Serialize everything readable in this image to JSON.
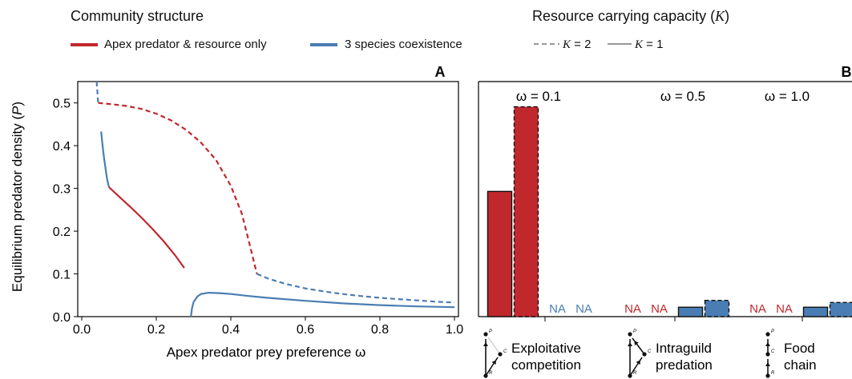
{
  "legend": {
    "community_title": "Community structure",
    "community_items": [
      {
        "label": "Apex predator & resource only",
        "color": "#c0282d"
      },
      {
        "label": "3 species coexistence",
        "color": "#4a7db3"
      }
    ],
    "capacity_title_prefix": "Resource carrying capacity (",
    "capacity_title_symbol": "K",
    "capacity_title_suffix": ")",
    "capacity_items": [
      {
        "symbol": "K",
        "value": " = 2",
        "style": "dashed"
      },
      {
        "symbol": "K",
        "value": " = 1",
        "style": "solid"
      }
    ]
  },
  "chart_data": [
    {
      "type": "line",
      "panel_label": "A",
      "xlabel": "Apex predator prey preference ω",
      "ylabel_prefix": "Equilibrium predator density (",
      "ylabel_symbol": "P",
      "ylabel_suffix": ")",
      "xlim": [
        0.0,
        1.0
      ],
      "ylim": [
        0.0,
        0.55
      ],
      "xticks": [
        "0.0",
        "0.2",
        "0.4",
        "0.6",
        "0.8",
        "1.0"
      ],
      "yticks": [
        "0.0",
        "0.1",
        "0.2",
        "0.3",
        "0.4",
        "0.5"
      ],
      "grid": false,
      "series": [
        {
          "community": "3 species coexistence",
          "K": 2,
          "style": "dashed",
          "color": "#4a7db3",
          "x": [
            0.04,
            0.044
          ],
          "y": [
            0.55,
            0.5
          ]
        },
        {
          "community": "Apex predator & resource only",
          "K": 2,
          "style": "dashed",
          "color": "#c0282d",
          "x": [
            0.044,
            0.08,
            0.12,
            0.16,
            0.2,
            0.24,
            0.28,
            0.32,
            0.36,
            0.4,
            0.43,
            0.45,
            0.47
          ],
          "y": [
            0.5,
            0.497,
            0.493,
            0.486,
            0.475,
            0.459,
            0.437,
            0.407,
            0.367,
            0.306,
            0.24,
            0.17,
            0.1
          ]
        },
        {
          "community": "3 species coexistence",
          "K": 2,
          "style": "dashed",
          "color": "#4a7db3",
          "x": [
            0.47,
            0.5,
            0.55,
            0.6,
            0.65,
            0.7,
            0.75,
            0.8,
            0.85,
            0.9,
            0.95,
            1.0
          ],
          "y": [
            0.1,
            0.089,
            0.076,
            0.066,
            0.059,
            0.053,
            0.048,
            0.044,
            0.041,
            0.038,
            0.035,
            0.033
          ]
        },
        {
          "community": "3 species coexistence",
          "K": 1,
          "style": "solid",
          "color": "#4a7db3",
          "x": [
            0.052,
            0.056,
            0.06,
            0.064,
            0.068,
            0.073
          ],
          "y": [
            0.433,
            0.4,
            0.37,
            0.345,
            0.322,
            0.303
          ]
        },
        {
          "community": "Apex predator & resource only",
          "K": 1,
          "style": "solid",
          "color": "#c0282d",
          "x": [
            0.073,
            0.1,
            0.13,
            0.16,
            0.19,
            0.22,
            0.25,
            0.275
          ],
          "y": [
            0.303,
            0.281,
            0.257,
            0.232,
            0.205,
            0.176,
            0.144,
            0.114
          ]
        },
        {
          "community": "3 species coexistence",
          "K": 1,
          "style": "solid",
          "color": "#4a7db3",
          "x": [
            0.293,
            0.296,
            0.3,
            0.31,
            0.32,
            0.34,
            0.37,
            0.4,
            0.45,
            0.5,
            0.6,
            0.7,
            0.8,
            0.9,
            1.0
          ],
          "y": [
            0.0,
            0.02,
            0.034,
            0.047,
            0.053,
            0.056,
            0.055,
            0.053,
            0.048,
            0.044,
            0.037,
            0.031,
            0.027,
            0.024,
            0.022
          ]
        }
      ]
    },
    {
      "type": "bar",
      "panel_label": "B",
      "ylim": [
        0.0,
        0.55
      ],
      "omega_labels": [
        "ω = 0.1",
        "ω = 0.5",
        "ω = 1.0"
      ],
      "categories": [
        {
          "title_lines": [
            "Exploitative",
            "competition"
          ]
        },
        {
          "title_lines": [
            "Intraguild",
            "predation"
          ]
        },
        {
          "title_lines": [
            "Food",
            "chain"
          ]
        }
      ],
      "bars": [
        {
          "group": 0,
          "omega": 0.1,
          "K": 1,
          "style": "solid",
          "value": 0.293,
          "color": "#c0282d"
        },
        {
          "group": 0,
          "omega": 0.1,
          "K": 2,
          "style": "dashed",
          "value": 0.491,
          "color": "#c0282d"
        },
        {
          "group": 1,
          "omega": 0.1,
          "K": 1,
          "na": true,
          "label": "NA",
          "color": "#4a7db3"
        },
        {
          "group": 1,
          "omega": 0.1,
          "K": 2,
          "na": true,
          "label": "NA",
          "color": "#4a7db3"
        },
        {
          "group": 1,
          "omega": 0.5,
          "K": 1,
          "na": true,
          "label": "NA",
          "color": "#c0282d"
        },
        {
          "group": 1,
          "omega": 0.5,
          "K": 2,
          "na": true,
          "label": "NA",
          "color": "#c0282d"
        },
        {
          "group": 2,
          "omega": 0.5,
          "K": 1,
          "style": "solid",
          "value": 0.022,
          "color": "#4a7db3"
        },
        {
          "group": 2,
          "omega": 0.5,
          "K": 2,
          "style": "dashed",
          "value": 0.038,
          "color": "#4a7db3"
        },
        {
          "group": 2,
          "omega": 1.0,
          "K": 1,
          "na": true,
          "label": "NA",
          "color": "#c0282d"
        },
        {
          "group": 2,
          "omega": 1.0,
          "K": 2,
          "na": true,
          "label": "NA",
          "color": "#c0282d"
        },
        {
          "group": 3,
          "omega": 1.0,
          "K": 1,
          "style": "solid",
          "value": 0.022,
          "color": "#4a7db3"
        },
        {
          "group": 3,
          "omega": 1.0,
          "K": 2,
          "style": "dashed",
          "value": 0.033,
          "color": "#4a7db3"
        }
      ],
      "diagram_nodes": [
        "P",
        "C",
        "R"
      ]
    }
  ]
}
